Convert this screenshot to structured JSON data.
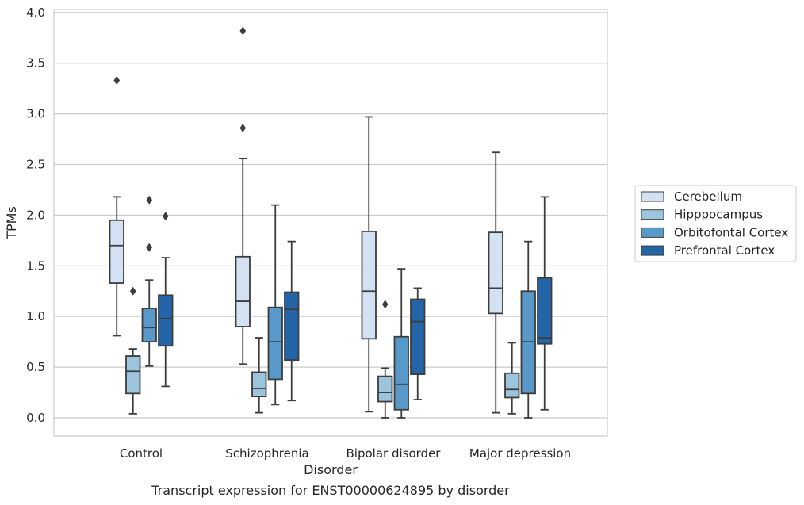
{
  "caption": "Transcript expression for ENST00000624895 by disorder",
  "chart_data": {
    "type": "box",
    "xlabel": "Disorder",
    "ylabel": "TPMs",
    "ylim": [
      -0.18,
      4.03
    ],
    "yticks": [
      "0.0",
      "0.5",
      "1.0",
      "1.5",
      "2.0",
      "2.5",
      "3.0",
      "3.5",
      "4.0"
    ],
    "ytick_values": [
      0,
      0.5,
      1.0,
      1.5,
      2.0,
      2.5,
      3.0,
      3.5,
      4.0
    ],
    "grid": "horizontal",
    "legend_position": "right",
    "categories": [
      "Control",
      "Schizophrenia",
      "Bipolar disorder",
      "Major depression"
    ],
    "series": [
      {
        "name": "Cerebellum",
        "color": "#d2e2f3",
        "boxes": [
          {
            "whisker_low": 0.81,
            "q1": 1.33,
            "median": 1.7,
            "q3": 1.95,
            "whisker_high": 2.18,
            "outliers": [
              3.33
            ]
          },
          {
            "whisker_low": 0.53,
            "q1": 0.9,
            "median": 1.15,
            "q3": 1.59,
            "whisker_high": 2.56,
            "outliers": [
              2.86,
              3.82
            ]
          },
          {
            "whisker_low": 0.06,
            "q1": 0.78,
            "median": 1.25,
            "q3": 1.84,
            "whisker_high": 2.97,
            "outliers": []
          },
          {
            "whisker_low": 0.05,
            "q1": 1.03,
            "median": 1.28,
            "q3": 1.83,
            "whisker_high": 2.62,
            "outliers": []
          }
        ]
      },
      {
        "name": "Hipppocampus",
        "color": "#9cc4dc",
        "boxes": [
          {
            "whisker_low": 0.04,
            "q1": 0.24,
            "median": 0.46,
            "q3": 0.61,
            "whisker_high": 0.68,
            "outliers": [
              1.25
            ]
          },
          {
            "whisker_low": 0.05,
            "q1": 0.21,
            "median": 0.29,
            "q3": 0.45,
            "whisker_high": 0.79,
            "outliers": []
          },
          {
            "whisker_low": 0.0,
            "q1": 0.16,
            "median": 0.25,
            "q3": 0.41,
            "whisker_high": 0.49,
            "outliers": [
              1.12
            ]
          },
          {
            "whisker_low": 0.04,
            "q1": 0.2,
            "median": 0.28,
            "q3": 0.44,
            "whisker_high": 0.74,
            "outliers": []
          }
        ]
      },
      {
        "name": "Orbitofontal Cortex",
        "color": "#5899c9",
        "boxes": [
          {
            "whisker_low": 0.51,
            "q1": 0.75,
            "median": 0.89,
            "q3": 1.08,
            "whisker_high": 1.36,
            "outliers": [
              1.68,
              2.15
            ]
          },
          {
            "whisker_low": 0.13,
            "q1": 0.38,
            "median": 0.75,
            "q3": 1.09,
            "whisker_high": 2.1,
            "outliers": []
          },
          {
            "whisker_low": 0.0,
            "q1": 0.08,
            "median": 0.33,
            "q3": 0.8,
            "whisker_high": 1.47,
            "outliers": []
          },
          {
            "whisker_low": 0.0,
            "q1": 0.24,
            "median": 0.75,
            "q3": 1.25,
            "whisker_high": 1.74,
            "outliers": []
          }
        ]
      },
      {
        "name": "Prefrontal Cortex",
        "color": "#2464a8",
        "boxes": [
          {
            "whisker_low": 0.31,
            "q1": 0.71,
            "median": 0.98,
            "q3": 1.21,
            "whisker_high": 1.58,
            "outliers": [
              1.99
            ]
          },
          {
            "whisker_low": 0.17,
            "q1": 0.57,
            "median": 1.07,
            "q3": 1.24,
            "whisker_high": 1.74,
            "outliers": []
          },
          {
            "whisker_low": 0.18,
            "q1": 0.43,
            "median": 0.95,
            "q3": 1.17,
            "whisker_high": 1.28,
            "outliers": []
          },
          {
            "whisker_low": 0.08,
            "q1": 0.73,
            "median": 0.79,
            "q3": 1.38,
            "whisker_high": 2.18,
            "outliers": []
          }
        ]
      }
    ]
  }
}
